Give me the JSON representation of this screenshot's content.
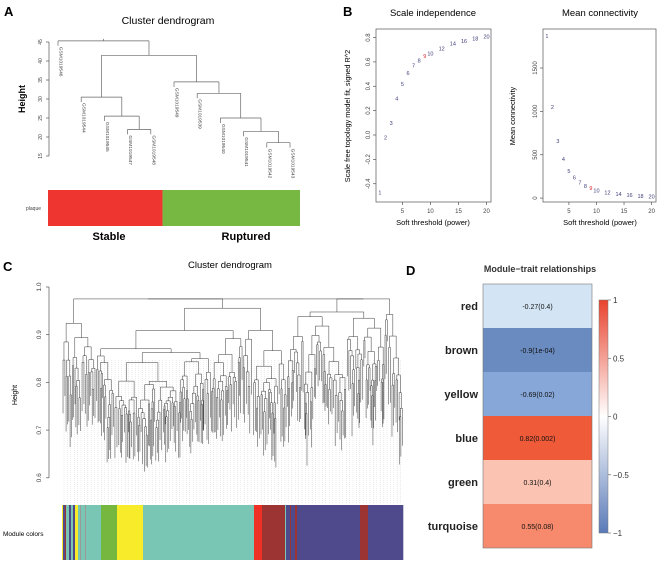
{
  "panel_labels": {
    "a": "A",
    "b": "B",
    "c": "C",
    "d": "D"
  },
  "colors": {
    "axis": "#555555",
    "tick_text": "#444444",
    "point": "#3c3c78",
    "highlight": "#e0202a",
    "branch": "#222222"
  },
  "chart_data": [
    {
      "id": "A",
      "type": "dendrogram",
      "title": "Cluster dendrogram",
      "ylabel": "Height",
      "ylim": [
        15,
        45
      ],
      "yticks": [
        "15",
        "20",
        "25",
        "30",
        "35",
        "40",
        "45"
      ],
      "leaves": [
        "GSM1019546",
        "GSM1019544",
        "GSM1019545",
        "GSM1019547",
        "GSM1019548",
        "GSM1019549",
        "GSM1019539",
        "GSM1019540",
        "GSM1019541",
        "GSM1019542",
        "GSM1019543"
      ],
      "merges": [
        {
          "id": "m1",
          "left": "GSM1019547",
          "right": "GSM1019548",
          "height": 22
        },
        {
          "id": "m2",
          "left": "GSM1019545",
          "right": "m1",
          "height": 25.5
        },
        {
          "id": "m3",
          "left": "GSM1019544",
          "right": "m2",
          "height": 30.5
        },
        {
          "id": "m4",
          "left": "GSM1019542",
          "right": "GSM1019543",
          "height": 18.5
        },
        {
          "id": "m5",
          "left": "GSM1019541",
          "right": "m4",
          "height": 21.5
        },
        {
          "id": "m6",
          "left": "GSM1019540",
          "right": "m5",
          "height": 25
        },
        {
          "id": "m7",
          "left": "GSM1019539",
          "right": "m6",
          "height": 31.5
        },
        {
          "id": "m8",
          "left": "GSM1019549",
          "right": "m7",
          "height": 34.5
        },
        {
          "id": "m9",
          "left": "m3",
          "right": "m8",
          "height": 41.5
        },
        {
          "id": "m10",
          "left": "GSM1019546",
          "right": "m9",
          "height": 45.3
        }
      ],
      "trait_bar": {
        "label": "plaque",
        "groups": [
          {
            "name": "Stable",
            "count": 5,
            "color": "#ee3530"
          },
          {
            "name": "Ruptured",
            "count": 6,
            "color": "#76b842"
          }
        ]
      }
    },
    {
      "id": "B1",
      "type": "scatter",
      "title": "Scale independence",
      "xlabel": "Soft threshold (power)",
      "ylabel": "Scale free topology model fit, signed R^2",
      "xlim": [
        0.3,
        20.8
      ],
      "ylim": [
        -0.55,
        0.87
      ],
      "xticks": [
        "5",
        "10",
        "15",
        "20"
      ],
      "yticks": [
        "-0.4",
        "-0.2",
        "0.0",
        "0.2",
        "0.4",
        "0.6",
        "0.8"
      ],
      "highlight_power": 9,
      "points": [
        {
          "x": 1,
          "y": -0.47
        },
        {
          "x": 2,
          "y": -0.02
        },
        {
          "x": 3,
          "y": 0.1
        },
        {
          "x": 4,
          "y": 0.3
        },
        {
          "x": 5,
          "y": 0.42
        },
        {
          "x": 6,
          "y": 0.51
        },
        {
          "x": 7,
          "y": 0.57
        },
        {
          "x": 8,
          "y": 0.61
        },
        {
          "x": 9,
          "y": 0.65
        },
        {
          "x": 10,
          "y": 0.67
        },
        {
          "x": 12,
          "y": 0.71
        },
        {
          "x": 14,
          "y": 0.75
        },
        {
          "x": 16,
          "y": 0.77
        },
        {
          "x": 18,
          "y": 0.79
        },
        {
          "x": 20,
          "y": 0.81
        }
      ]
    },
    {
      "id": "B2",
      "type": "scatter",
      "title": "Mean connectivity",
      "xlabel": "Soft threshold (power)",
      "ylabel": "Mean connectivity",
      "xlim": [
        0.3,
        20.8
      ],
      "ylim": [
        -45,
        1950
      ],
      "xticks": [
        "5",
        "10",
        "15",
        "20"
      ],
      "yticks": [
        "0",
        "500",
        "1000",
        "1500"
      ],
      "highlight_power": 9,
      "points": [
        {
          "x": 1,
          "y": 1870
        },
        {
          "x": 2,
          "y": 1050
        },
        {
          "x": 3,
          "y": 660
        },
        {
          "x": 4,
          "y": 450
        },
        {
          "x": 5,
          "y": 310
        },
        {
          "x": 6,
          "y": 240
        },
        {
          "x": 7,
          "y": 180
        },
        {
          "x": 8,
          "y": 140
        },
        {
          "x": 9,
          "y": 115
        },
        {
          "x": 10,
          "y": 85
        },
        {
          "x": 12,
          "y": 65
        },
        {
          "x": 14,
          "y": 45
        },
        {
          "x": 16,
          "y": 35
        },
        {
          "x": 18,
          "y": 25
        },
        {
          "x": 20,
          "y": 20
        }
      ]
    },
    {
      "id": "C",
      "type": "dendrogram",
      "title": "Cluster dendrogram",
      "ylabel": "Height",
      "ylim": [
        0.57,
        1.0
      ],
      "yticks": [
        "0.6",
        "0.7",
        "0.8",
        "0.9",
        "1.0"
      ],
      "module_bar_label": "Module colors",
      "module_segments": [
        {
          "color": "#f8ec2a",
          "w": 1
        },
        {
          "color": "#4f4a8c",
          "w": 2
        },
        {
          "color": "#9b3432",
          "w": 1
        },
        {
          "color": "#79c6b5",
          "w": 3
        },
        {
          "color": "#4f4a8c",
          "w": 2
        },
        {
          "color": "#79c6b5",
          "w": 2
        },
        {
          "color": "#4f4a8c",
          "w": 2
        },
        {
          "color": "#f8ec2a",
          "w": 3
        },
        {
          "color": "#79c6b5",
          "w": 2
        },
        {
          "color": "#9a9a9a",
          "w": 1
        },
        {
          "color": "#79c6b5",
          "w": 4
        },
        {
          "color": "#9a9a9a",
          "w": 1
        },
        {
          "color": "#79c6b5",
          "w": 15
        },
        {
          "color": "#76b83f",
          "w": 16
        },
        {
          "color": "#f8ec2a",
          "w": 26
        },
        {
          "color": "#79c6b5",
          "w": 111
        },
        {
          "color": "#ee3124",
          "w": 8
        },
        {
          "color": "#9b3432",
          "w": 23
        },
        {
          "color": "#79c6b5",
          "w": 1
        },
        {
          "color": "#4f4a8c",
          "w": 4
        },
        {
          "color": "#9b3432",
          "w": 1
        },
        {
          "color": "#4f4a8c",
          "w": 4
        },
        {
          "color": "#9b3432",
          "w": 2
        },
        {
          "color": "#4f4a8c",
          "w": 63
        },
        {
          "color": "#9b3432",
          "w": 8
        },
        {
          "color": "#4f4a8c",
          "w": 35
        }
      ]
    },
    {
      "id": "D",
      "type": "heatmap",
      "title": "Module−trait relationships",
      "rows": [
        {
          "module": "red",
          "value": -0.27,
          "label": "-0.27(0.4)",
          "color": "#d3e5f4"
        },
        {
          "module": "brown",
          "value": -0.9,
          "label": "-0.9(1e-04)",
          "color": "#6a8bc0"
        },
        {
          "module": "yellow",
          "value": -0.69,
          "label": "-0.69(0.02)",
          "color": "#86a7d8"
        },
        {
          "module": "blue",
          "value": 0.82,
          "label": "0.82(0.002)",
          "color": "#ef5a39"
        },
        {
          "module": "green",
          "value": 0.31,
          "label": "0.31(0.4)",
          "color": "#fbc3b1"
        },
        {
          "module": "turquoise",
          "value": 0.55,
          "label": "0.55(0.08)",
          "color": "#f78a6c"
        }
      ],
      "colorbar": {
        "ticks": [
          "1",
          "0.5",
          "0",
          "−0.5",
          "−1"
        ],
        "high": "#e8432e",
        "mid": "#ffffff",
        "low": "#5a7ab8"
      }
    }
  ]
}
